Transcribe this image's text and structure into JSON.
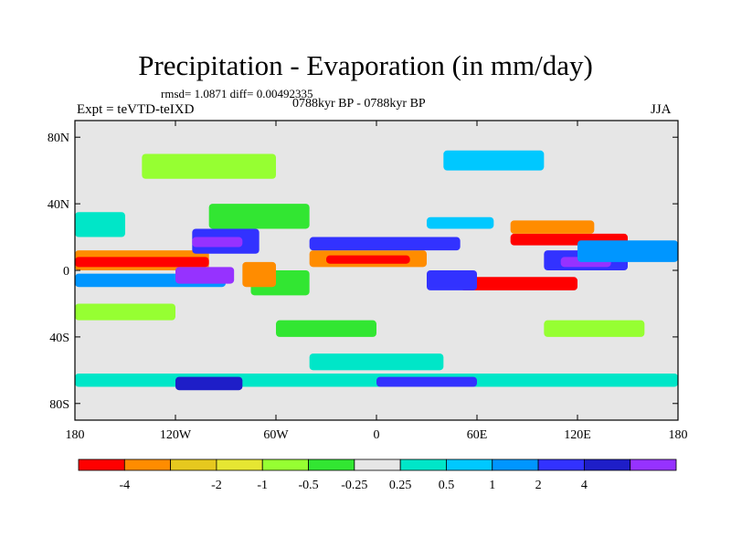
{
  "header": {
    "title": "Precipitation - Evaporation (in mm/day)",
    "stats": "rmsd= 1.0871 diff= 0.00492335",
    "experiment": "Expt = teVTD-teIXD",
    "period": "0788kyr BP - 0788kyr BP",
    "season": "JJA"
  },
  "chart_data": {
    "type": "heatmap",
    "title": "Precipitation - Evaporation (in mm/day)",
    "subtitle": "0788kyr BP - 0788kyr BP",
    "xlim": [
      -180,
      180
    ],
    "ylim": [
      -90,
      90
    ],
    "x_ticks": [
      {
        "value": -180,
        "label": "180"
      },
      {
        "value": -120,
        "label": "120W"
      },
      {
        "value": -60,
        "label": "60W"
      },
      {
        "value": 0,
        "label": "0"
      },
      {
        "value": 60,
        "label": "60E"
      },
      {
        "value": 120,
        "label": "120E"
      },
      {
        "value": 180,
        "label": "180"
      }
    ],
    "y_ticks": [
      {
        "value": 80,
        "label": "80N"
      },
      {
        "value": 40,
        "label": "40N"
      },
      {
        "value": 0,
        "label": "0"
      },
      {
        "value": -40,
        "label": "40S"
      },
      {
        "value": -80,
        "label": "80S"
      }
    ],
    "colorbar": {
      "bins": [
        {
          "color": "#ff0000"
        },
        {
          "color": "#ff8c00"
        },
        {
          "color": "#e6c81e"
        },
        {
          "color": "#e6e632"
        },
        {
          "color": "#96ff32"
        },
        {
          "color": "#32e632"
        },
        {
          "color": "#e6e6e6"
        },
        {
          "color": "#00e6c8"
        },
        {
          "color": "#00c8ff"
        },
        {
          "color": "#0096ff"
        },
        {
          "color": "#3232ff"
        },
        {
          "color": "#1e1ec8"
        },
        {
          "color": "#9632ff"
        }
      ],
      "labels": [
        "-4",
        "-2",
        "-1",
        "-0.5",
        "-0.25",
        "0.25",
        "0.5",
        "1",
        "2",
        "4"
      ],
      "label_positions": [
        1,
        3,
        4,
        5,
        6,
        7,
        8,
        9,
        10,
        11
      ]
    },
    "features": [
      {
        "lon": [
          -180,
          -100
        ],
        "lat": [
          0,
          12
        ],
        "color": "#ff8c00"
      },
      {
        "lon": [
          -180,
          -100
        ],
        "lat": [
          2,
          8
        ],
        "color": "#ff0000"
      },
      {
        "lon": [
          -180,
          -90
        ],
        "lat": [
          -10,
          -2
        ],
        "color": "#0096ff"
      },
      {
        "lon": [
          -120,
          -85
        ],
        "lat": [
          -8,
          2
        ],
        "color": "#9632ff"
      },
      {
        "lon": [
          -110,
          -70
        ],
        "lat": [
          10,
          25
        ],
        "color": "#3232ff"
      },
      {
        "lon": [
          -110,
          -80
        ],
        "lat": [
          14,
          20
        ],
        "color": "#9632ff"
      },
      {
        "lon": [
          -100,
          -40
        ],
        "lat": [
          25,
          40
        ],
        "color": "#32e632"
      },
      {
        "lon": [
          -75,
          -40
        ],
        "lat": [
          -15,
          0
        ],
        "color": "#32e632"
      },
      {
        "lon": [
          -80,
          -60
        ],
        "lat": [
          -10,
          5
        ],
        "color": "#ff8c00"
      },
      {
        "lon": [
          -40,
          30
        ],
        "lat": [
          2,
          12
        ],
        "color": "#ff8c00"
      },
      {
        "lon": [
          -30,
          20
        ],
        "lat": [
          4,
          9
        ],
        "color": "#ff0000"
      },
      {
        "lon": [
          -40,
          50
        ],
        "lat": [
          12,
          20
        ],
        "color": "#3232ff"
      },
      {
        "lon": [
          30,
          70
        ],
        "lat": [
          25,
          32
        ],
        "color": "#00c8ff"
      },
      {
        "lon": [
          80,
          150
        ],
        "lat": [
          15,
          22
        ],
        "color": "#ff0000"
      },
      {
        "lon": [
          80,
          130
        ],
        "lat": [
          22,
          30
        ],
        "color": "#ff8c00"
      },
      {
        "lon": [
          100,
          150
        ],
        "lat": [
          0,
          12
        ],
        "color": "#3232ff"
      },
      {
        "lon": [
          110,
          140
        ],
        "lat": [
          2,
          8
        ],
        "color": "#9632ff"
      },
      {
        "lon": [
          50,
          120
        ],
        "lat": [
          -12,
          -4
        ],
        "color": "#ff0000"
      },
      {
        "lon": [
          30,
          60
        ],
        "lat": [
          -12,
          0
        ],
        "color": "#3232ff"
      },
      {
        "lon": [
          120,
          180
        ],
        "lat": [
          5,
          18
        ],
        "color": "#0096ff"
      },
      {
        "lon": [
          -180,
          180
        ],
        "lat": [
          -70,
          -62
        ],
        "color": "#00e6c8"
      },
      {
        "lon": [
          -120,
          -80
        ],
        "lat": [
          -72,
          -64
        ],
        "color": "#1e1ec8"
      },
      {
        "lon": [
          -40,
          40
        ],
        "lat": [
          -60,
          -50
        ],
        "color": "#00e6c8"
      },
      {
        "lon": [
          0,
          60
        ],
        "lat": [
          -70,
          -64
        ],
        "color": "#3232ff"
      },
      {
        "lon": [
          -180,
          -150
        ],
        "lat": [
          20,
          35
        ],
        "color": "#00e6c8"
      },
      {
        "lon": [
          -140,
          -60
        ],
        "lat": [
          55,
          70
        ],
        "color": "#96ff32"
      },
      {
        "lon": [
          40,
          100
        ],
        "lat": [
          60,
          72
        ],
        "color": "#00c8ff"
      },
      {
        "lon": [
          -180,
          -120
        ],
        "lat": [
          -30,
          -20
        ],
        "color": "#96ff32"
      },
      {
        "lon": [
          -60,
          0
        ],
        "lat": [
          -40,
          -30
        ],
        "color": "#32e632"
      },
      {
        "lon": [
          100,
          160
        ],
        "lat": [
          -40,
          -30
        ],
        "color": "#96ff32"
      }
    ]
  }
}
